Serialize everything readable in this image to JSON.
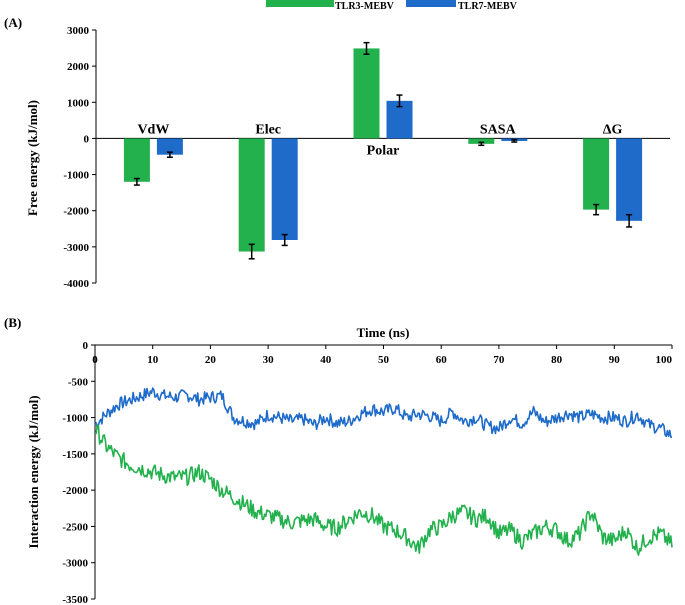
{
  "colors": {
    "green": "#22b14c",
    "blue": "#1f6bc9",
    "axis": "#000000"
  },
  "chart_data": [
    {
      "panel_label": "(A)",
      "type": "bar",
      "legend_position": "top",
      "ylabel": "Free energy (kJ/mol)",
      "ylim": [
        -4000,
        3000
      ],
      "yticks": [
        "3000",
        "2000",
        "1000",
        "0",
        "-1000",
        "-2000",
        "-3000",
        "-4000"
      ],
      "ytick_values": [
        3000,
        2000,
        1000,
        0,
        -1000,
        -2000,
        -3000,
        -4000
      ],
      "categories": [
        "VdW",
        "Elec",
        "Polar",
        "SASA",
        "ΔG"
      ],
      "category_label_side": [
        "above",
        "above",
        "below",
        "above",
        "above"
      ],
      "series": [
        {
          "name": "TLR3-MEBV",
          "color": "#22b14c",
          "values": [
            -1200,
            -3130,
            2490,
            -150,
            -1970
          ],
          "errors": [
            90,
            200,
            160,
            40,
            140
          ]
        },
        {
          "name": "TLR7-MEBV",
          "color": "#1f6bc9",
          "values": [
            -450,
            -2810,
            1040,
            -70,
            -2280
          ],
          "errors": [
            70,
            150,
            160,
            30,
            170
          ]
        }
      ]
    },
    {
      "panel_label": "(B)",
      "type": "line",
      "xlabel": "Time (ns)",
      "ylabel": "Interaction energy (kJ/mol)",
      "xlim": [
        0,
        100
      ],
      "ylim": [
        -3500,
        0
      ],
      "xticks": [
        "0",
        "10",
        "20",
        "30",
        "40",
        "50",
        "60",
        "70",
        "80",
        "90",
        "100"
      ],
      "xtick_values": [
        0,
        10,
        20,
        30,
        40,
        50,
        60,
        70,
        80,
        90,
        100
      ],
      "yticks": [
        "0",
        "-500",
        "-1000",
        "-1500",
        "-2000",
        "-2500",
        "-3000",
        "-3500"
      ],
      "ytick_values": [
        0,
        -500,
        -1000,
        -1500,
        -2000,
        -2500,
        -3000,
        -3500
      ],
      "series": [
        {
          "color": "#1f6bc9",
          "x": [
            0,
            2,
            4,
            6,
            8,
            10,
            12,
            14,
            16,
            18,
            20,
            22,
            24,
            26,
            28,
            30,
            32,
            34,
            36,
            38,
            40,
            42,
            44,
            46,
            48,
            50,
            52,
            54,
            56,
            58,
            60,
            62,
            64,
            66,
            68,
            70,
            72,
            74,
            76,
            78,
            80,
            82,
            84,
            86,
            88,
            90,
            92,
            94,
            96,
            98,
            100
          ],
          "y": [
            -1100,
            -950,
            -820,
            -760,
            -700,
            -640,
            -700,
            -720,
            -690,
            -750,
            -720,
            -700,
            -1000,
            -1050,
            -1080,
            -960,
            -1000,
            -1050,
            -1020,
            -1100,
            -1000,
            -1080,
            -1050,
            -950,
            -880,
            -920,
            -870,
            -1000,
            -950,
            -980,
            -1050,
            -920,
            -1050,
            -1000,
            -1120,
            -1150,
            -1000,
            -1080,
            -920,
            -1060,
            -1000,
            -940,
            -1000,
            -950,
            -1000,
            -1000,
            -1050,
            -960,
            -1100,
            -1150,
            -1250
          ]
        },
        {
          "color": "#22b14c",
          "x": [
            0,
            2,
            4,
            6,
            8,
            10,
            12,
            14,
            16,
            18,
            20,
            22,
            24,
            26,
            28,
            30,
            32,
            34,
            36,
            38,
            40,
            42,
            44,
            46,
            48,
            50,
            52,
            54,
            56,
            58,
            60,
            62,
            64,
            66,
            68,
            70,
            72,
            74,
            76,
            78,
            80,
            82,
            84,
            86,
            88,
            90,
            92,
            94,
            96,
            98,
            100
          ],
          "y": [
            -1150,
            -1400,
            -1550,
            -1650,
            -1700,
            -1750,
            -1800,
            -1830,
            -1820,
            -1750,
            -1850,
            -2000,
            -2100,
            -2200,
            -2300,
            -2350,
            -2400,
            -2450,
            -2420,
            -2400,
            -2500,
            -2520,
            -2400,
            -2300,
            -2350,
            -2500,
            -2550,
            -2650,
            -2800,
            -2550,
            -2500,
            -2350,
            -2300,
            -2400,
            -2350,
            -2600,
            -2550,
            -2700,
            -2600,
            -2500,
            -2550,
            -2700,
            -2600,
            -2300,
            -2650,
            -2700,
            -2550,
            -2800,
            -2650,
            -2600,
            -2750
          ]
        }
      ]
    }
  ]
}
